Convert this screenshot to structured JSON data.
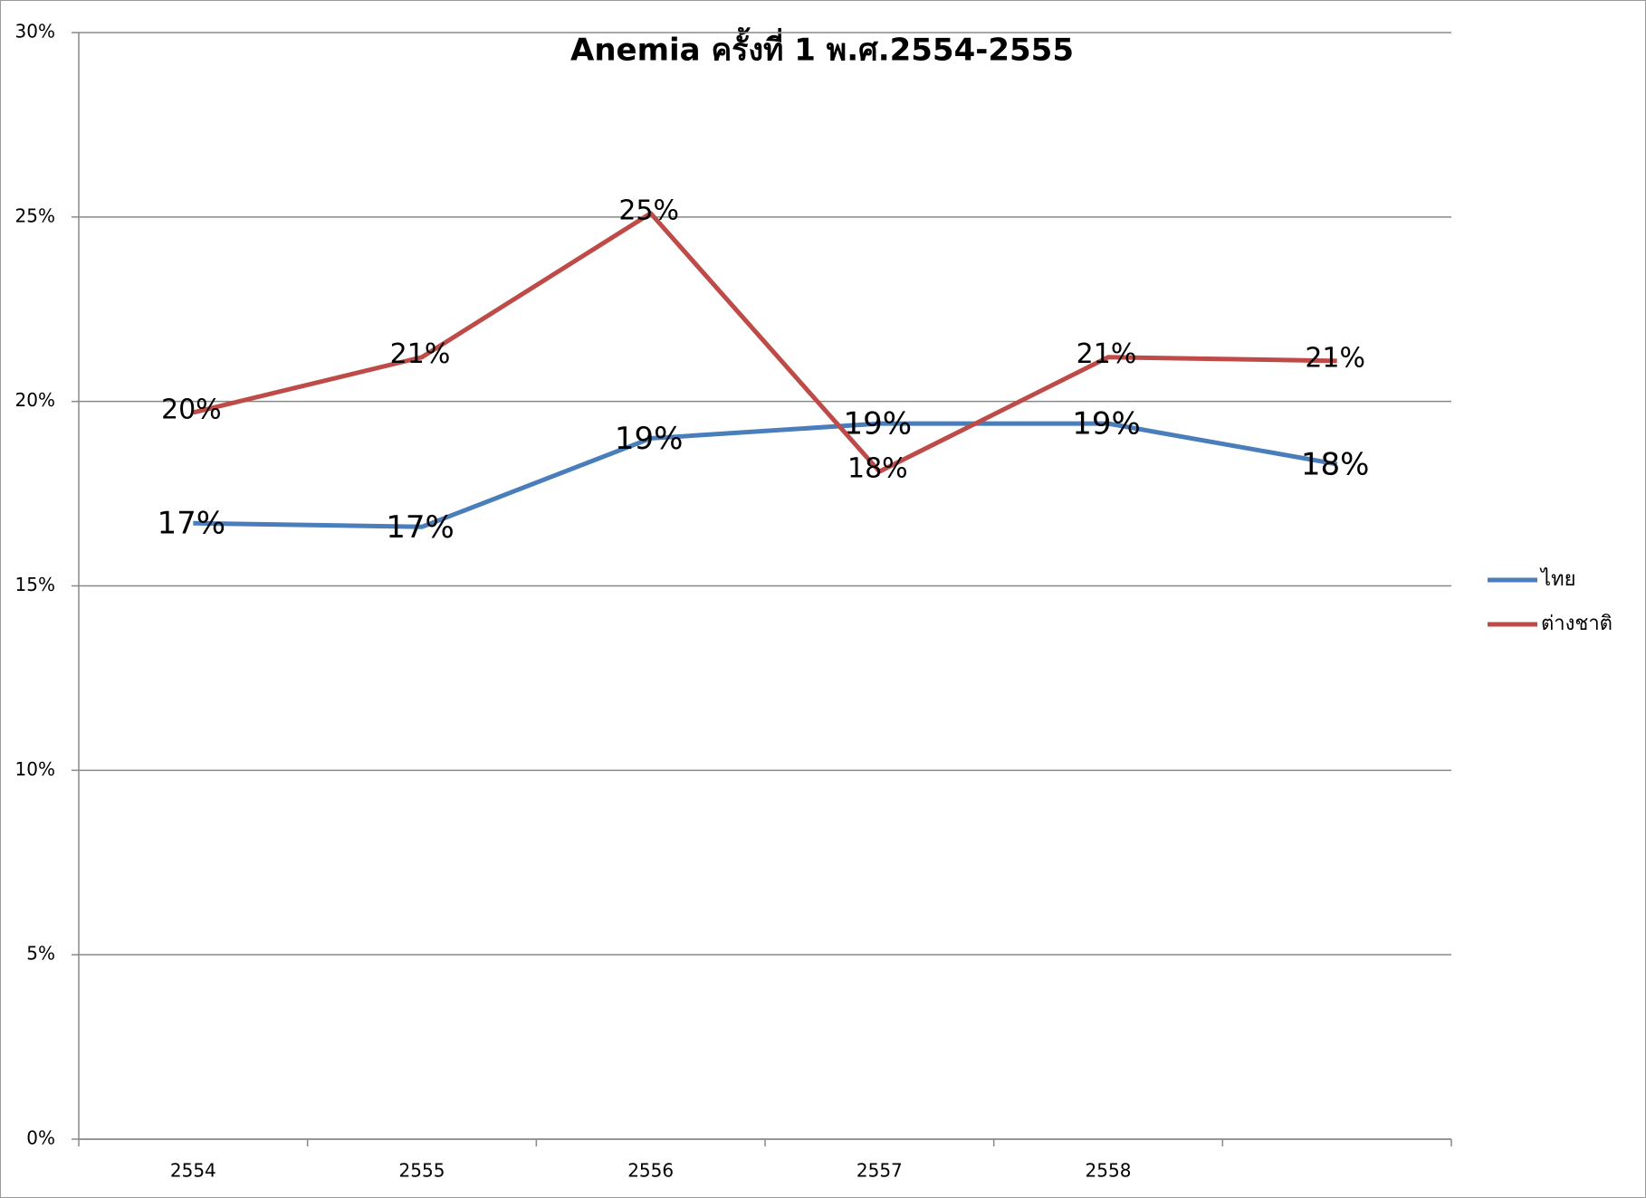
{
  "chart_data": {
    "type": "line",
    "title": "Anemia ครั้งที่ 1  พ.ศ.2554-2555",
    "categories": [
      "2554",
      "2555",
      "2556",
      "2557",
      "2558",
      null
    ],
    "series": [
      {
        "name": "ไทย",
        "color": "#4a7ebb",
        "values": [
          16.7,
          16.6,
          19.0,
          19.4,
          19.4,
          18.3
        ],
        "value_labels": [
          "17%",
          "17%",
          "19%",
          "19%",
          "19%",
          "18%"
        ]
      },
      {
        "name": "ต่างชาติ",
        "color": "#be4b48",
        "values": [
          19.7,
          21.2,
          25.1,
          18.1,
          21.2,
          21.1
        ],
        "value_labels": [
          "20%",
          "21%",
          "25%",
          "18%",
          "21%",
          "21%"
        ]
      }
    ],
    "ylim": [
      0,
      30
    ],
    "yticks": [
      {
        "value": 0,
        "label": "0%"
      },
      {
        "value": 5,
        "label": "5%"
      },
      {
        "value": 10,
        "label": "10%"
      },
      {
        "value": 15,
        "label": "15%"
      },
      {
        "value": 20,
        "label": "20%"
      },
      {
        "value": 25,
        "label": "25%"
      },
      {
        "value": 30,
        "label": "30%"
      }
    ],
    "grid": true,
    "legend": "right"
  }
}
